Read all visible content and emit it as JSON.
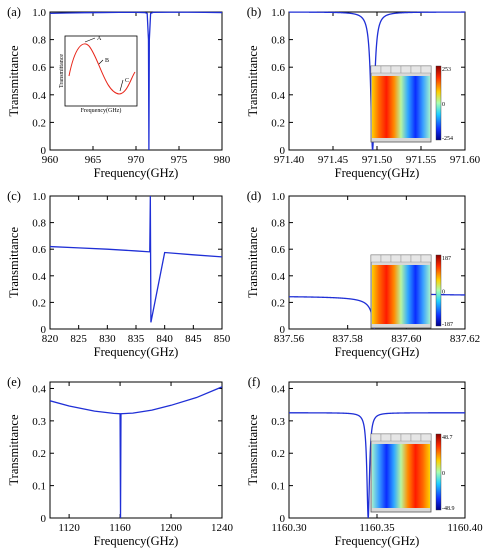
{
  "chart_data": [
    {
      "panel_label": "(a)",
      "type": "line",
      "xlabel": "Frequency(GHz)",
      "ylabel": "Transmittance",
      "xlim": [
        960,
        980
      ],
      "ylim": [
        0,
        1.0
      ],
      "xticks": [
        960,
        965,
        970,
        975,
        980
      ],
      "xtick_labels": [
        "960",
        "965",
        "970",
        "975",
        "980"
      ],
      "yticks": [
        0,
        0.2,
        0.4,
        0.6,
        0.8,
        1.0
      ],
      "ytick_labels": [
        "0",
        "0.2",
        "0.4",
        "0.6",
        "0.8",
        "1.0"
      ],
      "series": [
        {
          "color": "#1f2fd6",
          "x": [
            960,
            962,
            964,
            966,
            968,
            970,
            971.0,
            971.3,
            971.45,
            971.5,
            971.55,
            971.7,
            972,
            974,
            976,
            978,
            980
          ],
          "y": [
            0.99,
            0.993,
            0.995,
            0.996,
            0.997,
            0.997,
            0.996,
            0.99,
            0.8,
            0.0,
            0.8,
            0.99,
            0.997,
            0.998,
            0.998,
            0.997,
            0.996
          ]
        }
      ],
      "inset": {
        "kind": "schematic",
        "ylabel": "Transmittance",
        "xlabel": "Frequency(GHz)",
        "points": [
          "A",
          "B",
          "C"
        ]
      }
    },
    {
      "panel_label": "(b)",
      "type": "line",
      "xlabel": "Frequency(GHz)",
      "ylabel": "Transmittance",
      "xlim": [
        971.4,
        971.6
      ],
      "ylim": [
        0,
        1.0
      ],
      "xticks": [
        971.4,
        971.45,
        971.5,
        971.55,
        971.6
      ],
      "xtick_labels": [
        "971.40",
        "971.45",
        "971.50",
        "971.55",
        "971.60"
      ],
      "yticks": [
        0,
        0.2,
        0.4,
        0.6,
        0.8,
        1.0
      ],
      "ytick_labels": [
        "0",
        "0.2",
        "0.4",
        "0.6",
        "0.8",
        "1.0"
      ],
      "series": [
        {
          "color": "#1f2fd6",
          "model": "lorentz_dip",
          "f0": 971.495,
          "gamma": 0.0025,
          "base": 1.0,
          "depth": 1.0,
          "x_range": [
            971.4,
            971.6
          ]
        }
      ],
      "inset": {
        "kind": "field-map",
        "colorbar_max": "253",
        "colorbar_mid": "0",
        "colorbar_min": "-254"
      }
    },
    {
      "panel_label": "(c)",
      "type": "line",
      "xlabel": "Frequency(GHz)",
      "ylabel": "Transmittance",
      "xlim": [
        820,
        850
      ],
      "ylim": [
        0,
        1.0
      ],
      "xticks": [
        820,
        825,
        830,
        835,
        840,
        845,
        850
      ],
      "xtick_labels": [
        "820",
        "825",
        "830",
        "835",
        "840",
        "845",
        "850"
      ],
      "yticks": [
        0,
        0.2,
        0.4,
        0.6,
        0.8,
        1.0
      ],
      "ytick_labels": [
        "0",
        "0.2",
        "0.4",
        "0.6",
        "0.8",
        "1.0"
      ],
      "series": [
        {
          "color": "#1f2fd6",
          "x": [
            820,
            825,
            830,
            835,
            837.4,
            837.5,
            837.6,
            840,
            845,
            850
          ],
          "y": [
            0.62,
            0.61,
            0.6,
            0.587,
            0.58,
            1.0,
            0.05,
            0.575,
            0.558,
            0.542
          ]
        }
      ]
    },
    {
      "panel_label": "(d)",
      "type": "line",
      "xlabel": "Frequency(GHz)",
      "ylabel": "Transmittance",
      "xlim": [
        837.56,
        837.62
      ],
      "ylim": [
        0,
        1.0
      ],
      "xticks": [
        837.56,
        837.58,
        837.6,
        837.62
      ],
      "xtick_labels": [
        "837.56",
        "837.58",
        "837.60",
        "837.62"
      ],
      "yticks": [
        0,
        0.2,
        0.4,
        0.6,
        0.8,
        1.0
      ],
      "ytick_labels": [
        "0",
        "0.2",
        "0.4",
        "0.6",
        "0.8",
        "1.0"
      ],
      "series": [
        {
          "color": "#1f2fd6",
          "model": "fano",
          "f0": 837.5895,
          "gamma": 0.0004,
          "q": 1.0,
          "x_range": [
            837.56,
            837.62
          ]
        }
      ],
      "inset": {
        "kind": "field-map",
        "colorbar_max": "187",
        "colorbar_mid": "0",
        "colorbar_min": "-187"
      }
    },
    {
      "panel_label": "(e)",
      "type": "line",
      "xlabel": "Frequency(GHz)",
      "ylabel": "Transmittance",
      "xlim": [
        1105,
        1240
      ],
      "ylim": [
        0,
        0.42
      ],
      "xticks": [
        1120,
        1160,
        1200,
        1240
      ],
      "xtick_labels": [
        "1120",
        "1160",
        "1200",
        "1240"
      ],
      "yticks": [
        0,
        0.1,
        0.2,
        0.3,
        0.4
      ],
      "ytick_labels": [
        "0",
        "0.1",
        "0.2",
        "0.3",
        "0.4"
      ],
      "series": [
        {
          "color": "#1f2fd6",
          "x": [
            1105,
            1120,
            1140,
            1155,
            1160.0,
            1160.35,
            1160.7,
            1170,
            1185,
            1200,
            1220,
            1240
          ],
          "y": [
            0.362,
            0.346,
            0.33,
            0.323,
            0.322,
            0.0,
            0.322,
            0.324,
            0.333,
            0.348,
            0.372,
            0.405
          ]
        }
      ]
    },
    {
      "panel_label": "(f)",
      "type": "line",
      "xlabel": "Frequency(GHz)",
      "ylabel": "Transmittance",
      "xlim": [
        1160.3,
        1160.4
      ],
      "ylim": [
        0,
        0.42
      ],
      "xticks": [
        1160.3,
        1160.35,
        1160.4
      ],
      "xtick_labels": [
        "1160.30",
        "1160.35",
        "1160.40"
      ],
      "yticks": [
        0,
        0.1,
        0.2,
        0.3,
        0.4
      ],
      "ytick_labels": [
        "0",
        "0.1",
        "0.2",
        "0.3",
        "0.4"
      ],
      "series": [
        {
          "color": "#1f2fd6",
          "model": "lorentz_dip",
          "f0": 1160.345,
          "gamma": 0.0009,
          "base": 0.325,
          "depth": 0.325,
          "x_range": [
            1160.3,
            1160.4
          ]
        }
      ],
      "inset": {
        "kind": "field-map",
        "colorbar_max": "48.7",
        "colorbar_mid": "0",
        "colorbar_min": "-48.9"
      }
    }
  ]
}
